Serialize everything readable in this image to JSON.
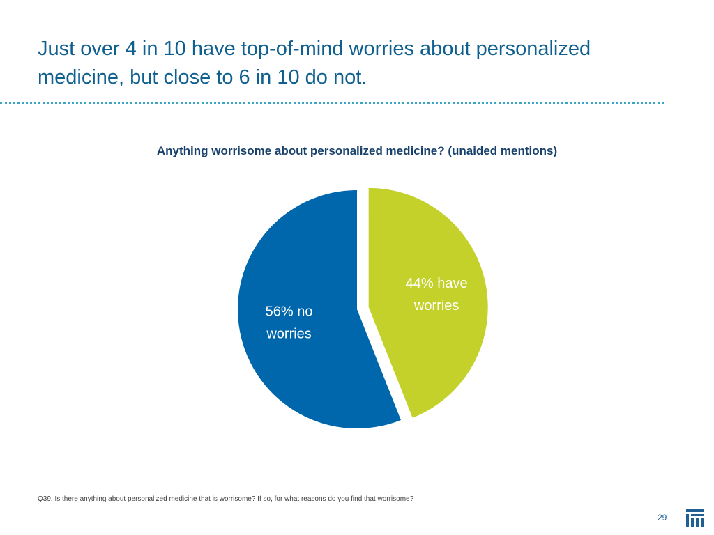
{
  "slide": {
    "title": "Just over 4 in 10 have top-of-mind worries about personalized medicine, but close to 6 in 10 do not.",
    "footnote": "Q39. Is there anything about personalized medicine that is worrisome? If so, for what reasons do you find that worrisome?",
    "page_number": "29",
    "logo_icon": "company-logo-icon"
  },
  "chart_data": {
    "type": "pie",
    "title": "Anything worrisome about personalized medicine? (unaided mentions)",
    "slices": [
      {
        "value": 44,
        "label_lines": [
          "44% have",
          "worries"
        ],
        "color": "#c3d12a",
        "exploded": true
      },
      {
        "value": 56,
        "label_lines": [
          "56% no",
          "worries"
        ],
        "color": "#0067ac",
        "exploded": false
      }
    ],
    "start_angle": "12 o'clock",
    "direction": "clockwise",
    "legend": "none"
  }
}
